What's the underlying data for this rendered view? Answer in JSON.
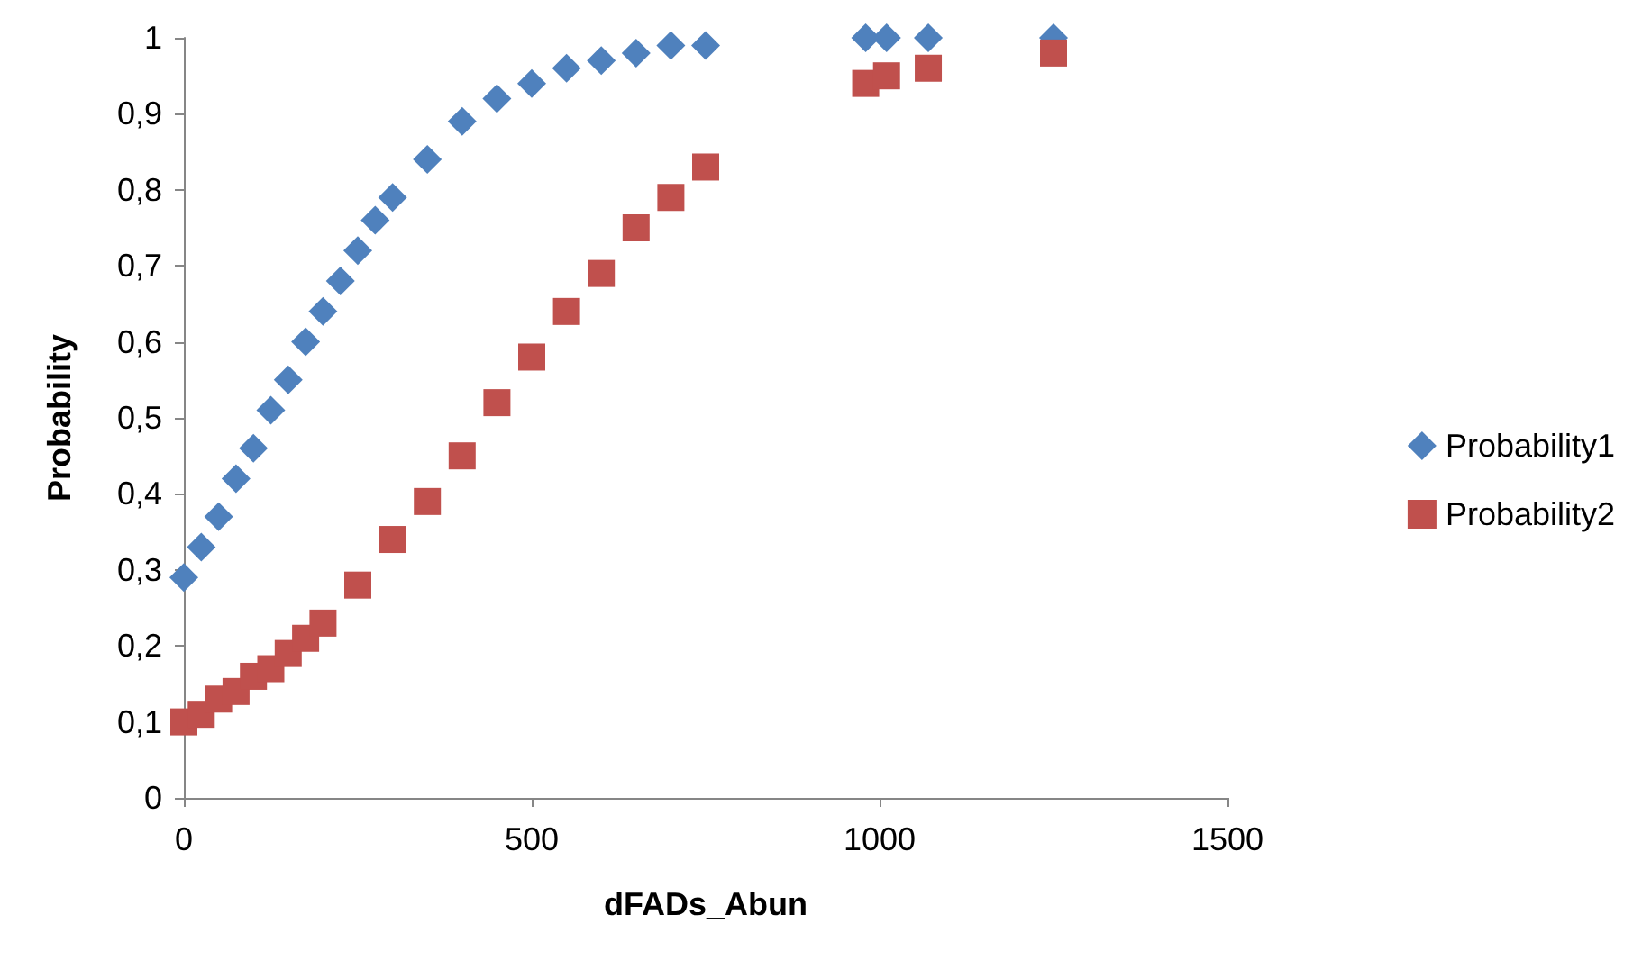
{
  "chart_data": {
    "type": "scatter",
    "xlabel": "dFADs_Abun",
    "ylabel": "Probability",
    "xlim": [
      0,
      1500
    ],
    "xticks": [
      0,
      500,
      1000,
      1500
    ],
    "ylim": [
      0,
      1
    ],
    "yticks": [
      0,
      {
        "value": 0.1,
        "label": "0,1"
      },
      {
        "value": 0.2,
        "label": "0,2"
      },
      {
        "value": 0.3,
        "label": "0,3"
      },
      {
        "value": 0.4,
        "label": "0,4"
      },
      {
        "value": 0.5,
        "label": "0,5"
      },
      {
        "value": 0.6,
        "label": "0,6"
      },
      {
        "value": 0.7,
        "label": "0,7"
      },
      {
        "value": 0.8,
        "label": "0,8"
      },
      {
        "value": 0.9,
        "label": "0,9"
      },
      1
    ],
    "grid": false,
    "legend": "right",
    "series": [
      {
        "name": "Probability1",
        "color": "#4f81bd",
        "marker": "diamond",
        "x": [
          0,
          25,
          50,
          75,
          100,
          125,
          150,
          175,
          200,
          225,
          250,
          275,
          300,
          350,
          400,
          450,
          500,
          550,
          600,
          650,
          700,
          750,
          980,
          1010,
          1070,
          1250
        ],
        "values": [
          0.29,
          0.33,
          0.37,
          0.42,
          0.46,
          0.51,
          0.55,
          0.6,
          0.64,
          0.68,
          0.72,
          0.76,
          0.79,
          0.84,
          0.89,
          0.92,
          0.94,
          0.96,
          0.97,
          0.98,
          0.99,
          0.99,
          1,
          1,
          1,
          1
        ]
      },
      {
        "name": "Probability2",
        "color": "#c0504d",
        "marker": "square",
        "x": [
          0,
          25,
          50,
          75,
          100,
          125,
          150,
          175,
          200,
          250,
          300,
          350,
          400,
          450,
          500,
          550,
          600,
          650,
          700,
          750,
          980,
          1010,
          1070,
          1250
        ],
        "values": [
          0.1,
          0.11,
          0.13,
          0.14,
          0.16,
          0.17,
          0.19,
          0.21,
          0.23,
          0.28,
          0.34,
          0.39,
          0.45,
          0.52,
          0.58,
          0.64,
          0.69,
          0.75,
          0.79,
          0.83,
          0.94,
          0.95,
          0.96,
          0.98
        ]
      }
    ]
  }
}
